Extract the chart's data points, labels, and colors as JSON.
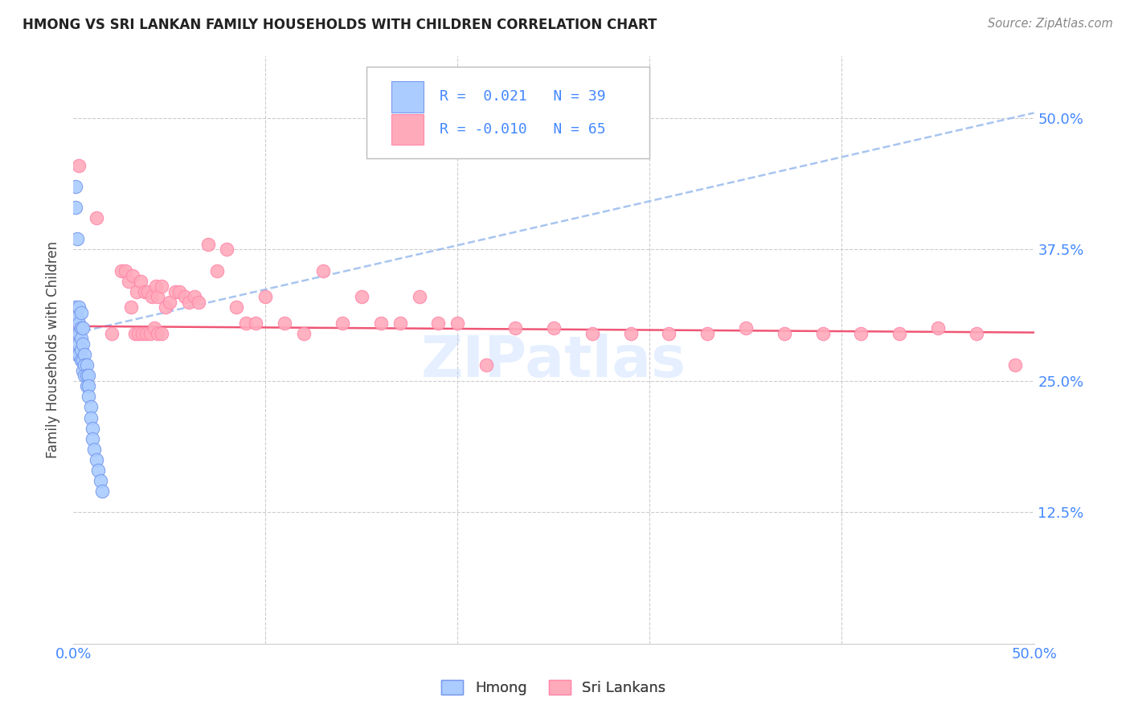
{
  "title": "HMONG VS SRI LANKAN FAMILY HOUSEHOLDS WITH CHILDREN CORRELATION CHART",
  "source": "Source: ZipAtlas.com",
  "ylabel": "Family Households with Children",
  "legend_line1": "R =  0.021  N = 39",
  "legend_line2": "R = -0.010  N = 65",
  "watermark": "ZIPatlas",
  "hmong_color": "#aaccff",
  "hmong_edge": "#7799ee",
  "srilankan_color": "#ffaabb",
  "srilankan_edge": "#ff88aa",
  "trend_hmong_color": "#99bbee",
  "trend_srilankan_color": "#ee4466",
  "hmong_x": [
    0.001,
    0.001,
    0.001,
    0.002,
    0.002,
    0.002,
    0.002,
    0.003,
    0.003,
    0.003,
    0.003,
    0.003,
    0.004,
    0.004,
    0.004,
    0.004,
    0.004,
    0.005,
    0.005,
    0.005,
    0.005,
    0.006,
    0.006,
    0.006,
    0.007,
    0.007,
    0.007,
    0.008,
    0.008,
    0.008,
    0.009,
    0.009,
    0.01,
    0.01,
    0.011,
    0.012,
    0.013,
    0.014,
    0.015
  ],
  "hmong_y": [
    0.435,
    0.415,
    0.32,
    0.385,
    0.31,
    0.295,
    0.275,
    0.32,
    0.305,
    0.295,
    0.285,
    0.275,
    0.315,
    0.3,
    0.29,
    0.28,
    0.27,
    0.3,
    0.285,
    0.27,
    0.26,
    0.275,
    0.265,
    0.255,
    0.265,
    0.255,
    0.245,
    0.255,
    0.245,
    0.235,
    0.225,
    0.215,
    0.205,
    0.195,
    0.185,
    0.175,
    0.165,
    0.155,
    0.145
  ],
  "srilankan_x": [
    0.001,
    0.003,
    0.012,
    0.02,
    0.025,
    0.027,
    0.029,
    0.031,
    0.033,
    0.035,
    0.037,
    0.039,
    0.041,
    0.043,
    0.044,
    0.046,
    0.048,
    0.05,
    0.053,
    0.055,
    0.058,
    0.06,
    0.063,
    0.065,
    0.07,
    0.075,
    0.08,
    0.085,
    0.09,
    0.095,
    0.1,
    0.11,
    0.12,
    0.13,
    0.14,
    0.15,
    0.16,
    0.17,
    0.18,
    0.19,
    0.2,
    0.215,
    0.23,
    0.25,
    0.27,
    0.29,
    0.31,
    0.33,
    0.35,
    0.37,
    0.39,
    0.41,
    0.43,
    0.45,
    0.47,
    0.49,
    0.03,
    0.032,
    0.034,
    0.036,
    0.038,
    0.04,
    0.042,
    0.044,
    0.046
  ],
  "srilankan_y": [
    0.3,
    0.455,
    0.405,
    0.295,
    0.355,
    0.355,
    0.345,
    0.35,
    0.335,
    0.345,
    0.335,
    0.335,
    0.33,
    0.34,
    0.33,
    0.34,
    0.32,
    0.325,
    0.335,
    0.335,
    0.33,
    0.325,
    0.33,
    0.325,
    0.38,
    0.355,
    0.375,
    0.32,
    0.305,
    0.305,
    0.33,
    0.305,
    0.295,
    0.355,
    0.305,
    0.33,
    0.305,
    0.305,
    0.33,
    0.305,
    0.305,
    0.265,
    0.3,
    0.3,
    0.295,
    0.295,
    0.295,
    0.295,
    0.3,
    0.295,
    0.295,
    0.295,
    0.295,
    0.3,
    0.295,
    0.265,
    0.32,
    0.295,
    0.295,
    0.295,
    0.295,
    0.295,
    0.3,
    0.295,
    0.295
  ],
  "hmong_trend_start_y": 0.295,
  "hmong_trend_end_y": 0.505,
  "sri_trend_start_y": 0.302,
  "sri_trend_end_y": 0.296,
  "xlim": [
    0.0,
    0.5
  ],
  "ylim": [
    0.0,
    0.56
  ],
  "ytick_vals": [
    0.125,
    0.25,
    0.375,
    0.5
  ],
  "ytick_labels": [
    "12.5%",
    "25.0%",
    "37.5%",
    "50.0%"
  ]
}
